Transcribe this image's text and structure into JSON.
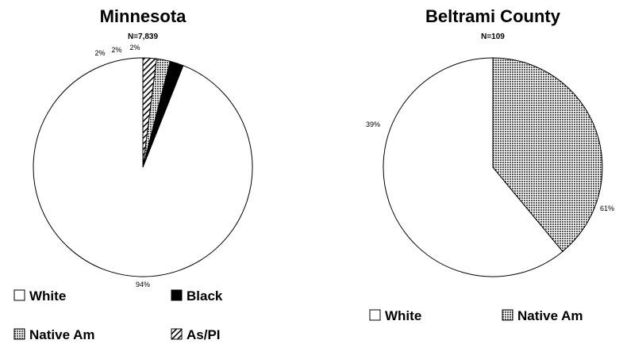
{
  "chart_data": [
    {
      "type": "pie",
      "title": "Minnesota",
      "subtitle": "N=7,839",
      "slices": [
        {
          "name": "White",
          "value": 94,
          "label": "94%",
          "fill": "white"
        },
        {
          "name": "Black",
          "value": 2,
          "label": "2%",
          "fill": "black"
        },
        {
          "name": "Native Am",
          "value": 2,
          "label": "2%",
          "fill": "dots"
        },
        {
          "name": "As/PI",
          "value": 2,
          "label": "2%",
          "fill": "hatch"
        }
      ],
      "legend": [
        {
          "name": "White",
          "fill": "white"
        },
        {
          "name": "Black",
          "fill": "black"
        },
        {
          "name": "Native Am",
          "fill": "dots"
        },
        {
          "name": "As/PI",
          "fill": "hatch"
        }
      ]
    },
    {
      "type": "pie",
      "title": "Beltrami County",
      "subtitle": "N=109",
      "slices": [
        {
          "name": "White",
          "value": 61,
          "label": "61%",
          "fill": "white"
        },
        {
          "name": "Native Am",
          "value": 39,
          "label": "39%",
          "fill": "dots"
        }
      ],
      "legend": [
        {
          "name": "White",
          "fill": "white"
        },
        {
          "name": "Native Am",
          "fill": "dots"
        }
      ]
    }
  ]
}
